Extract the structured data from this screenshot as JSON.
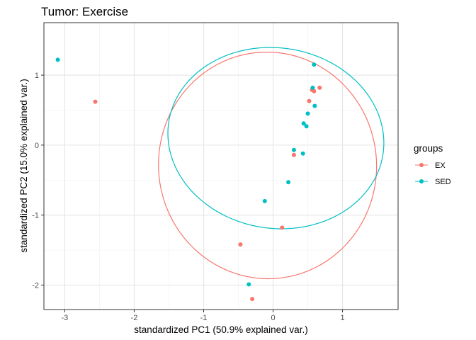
{
  "chart_data": {
    "type": "scatter",
    "title": "Tumor: Exercise",
    "xlabel": "standardized PC1 (50.9% explained var.)",
    "ylabel": "standardized PC2 (15.0% explained var.)",
    "xlim": [
      -3.3,
      1.8
    ],
    "ylim": [
      -2.35,
      1.75
    ],
    "x_ticks": [
      -3,
      -2,
      -1,
      0,
      1
    ],
    "y_ticks": [
      -2,
      -1,
      0,
      1
    ],
    "grid": true,
    "legend": {
      "title": "groups",
      "placement": "right",
      "entries": [
        {
          "name": "EX",
          "color": "#F8766D"
        },
        {
          "name": "SED",
          "color": "#00BFC4"
        }
      ]
    },
    "series": [
      {
        "name": "EX",
        "color": "#F8766D",
        "points": [
          {
            "x": -2.56,
            "y": 0.62
          },
          {
            "x": 0.67,
            "y": 0.82
          },
          {
            "x": 0.56,
            "y": 0.79
          },
          {
            "x": 0.59,
            "y": 0.77
          },
          {
            "x": 0.52,
            "y": 0.63
          },
          {
            "x": 0.3,
            "y": -0.14
          },
          {
            "x": 0.13,
            "y": -1.18
          },
          {
            "x": -0.47,
            "y": -1.42
          },
          {
            "x": -0.3,
            "y": -2.2
          }
        ],
        "ellipse": {
          "center": [
            -0.08,
            -0.29
          ],
          "rx": 1.57,
          "ry": 1.62,
          "angle_deg": 6
        }
      },
      {
        "name": "SED",
        "color": "#00BFC4",
        "points": [
          {
            "x": -3.1,
            "y": 1.22
          },
          {
            "x": 0.59,
            "y": 1.15
          },
          {
            "x": 0.57,
            "y": 0.82
          },
          {
            "x": 0.6,
            "y": 0.56
          },
          {
            "x": 0.5,
            "y": 0.45
          },
          {
            "x": 0.44,
            "y": 0.31
          },
          {
            "x": 0.48,
            "y": 0.27
          },
          {
            "x": 0.3,
            "y": -0.07
          },
          {
            "x": 0.43,
            "y": -0.12
          },
          {
            "x": 0.22,
            "y": -0.53
          },
          {
            "x": -0.12,
            "y": -0.8
          },
          {
            "x": -0.35,
            "y": -1.99
          }
        ],
        "ellipse": {
          "center": [
            0.04,
            0.1
          ],
          "rx": 1.56,
          "ry": 1.29,
          "angle_deg": -8
        }
      }
    ]
  }
}
